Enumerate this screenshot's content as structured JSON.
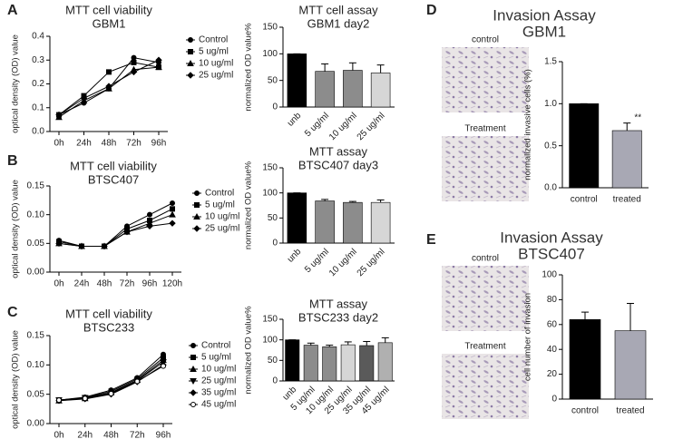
{
  "chart_data": [
    {
      "type": "line",
      "panel_label": "A",
      "title": "MTT cell viability",
      "subtitle": "GBM1",
      "y_label": "optical density (OD) value",
      "categories": [
        "0h",
        "24h",
        "48h",
        "72h",
        "96h"
      ],
      "series": [
        {
          "name": "Control",
          "color": "#000000",
          "marker": "circle",
          "values": [
            0.07,
            0.12,
            0.18,
            0.31,
            0.29
          ]
        },
        {
          "name": "5 ug/ml",
          "color": "#000000",
          "marker": "square",
          "values": [
            0.07,
            0.15,
            0.25,
            0.29,
            0.27
          ]
        },
        {
          "name": "10 ug/ml",
          "color": "#000000",
          "marker": "triangle",
          "values": [
            0.06,
            0.13,
            0.18,
            0.26,
            0.27
          ]
        },
        {
          "name": "25 ug/ml",
          "color": "#000000",
          "marker": "diamond",
          "values": [
            0.07,
            0.14,
            0.19,
            0.25,
            0.3
          ]
        }
      ],
      "ylim": [
        0,
        0.4
      ],
      "yticks": [
        {
          "value": 0,
          "label": "0.0"
        },
        0.1,
        0.2,
        0.3,
        0.4
      ]
    },
    {
      "type": "bar",
      "title": "MTT cell assay",
      "subtitle": "GBM1 day2",
      "y_label": "normalized OD value%",
      "categories": [
        "unb",
        "5 ug/ml",
        "10 ug/ml",
        "25 ug/ml"
      ],
      "values": [
        100,
        67,
        69,
        64
      ],
      "errors": [
        0,
        14,
        14,
        15
      ],
      "colors": [
        "#000000",
        "#8c8c8c",
        "#8c8c8c",
        "#d6d6d6"
      ],
      "ylim": [
        0,
        150
      ],
      "yticks": [
        0,
        50,
        100,
        150
      ]
    },
    {
      "type": "line",
      "panel_label": "B",
      "title": "MTT cell viability",
      "subtitle": "BTSC407",
      "y_label": "optical density (OD) value",
      "categories": [
        "0h",
        "24h",
        "48h",
        "72h",
        "96h",
        "120h"
      ],
      "series": [
        {
          "name": "Control",
          "color": "#000000",
          "marker": "circle",
          "values": [
            0.055,
            0.045,
            0.045,
            0.08,
            0.1,
            0.12
          ]
        },
        {
          "name": "5 ug/ml",
          "color": "#000000",
          "marker": "square",
          "values": [
            0.053,
            0.045,
            0.045,
            0.075,
            0.09,
            0.11
          ]
        },
        {
          "name": "10 ug/ml",
          "color": "#000000",
          "marker": "triangle",
          "values": [
            0.05,
            0.045,
            0.045,
            0.07,
            0.085,
            0.1
          ]
        },
        {
          "name": "25 ug/ml",
          "color": "#000000",
          "marker": "diamond",
          "values": [
            0.05,
            0.045,
            0.045,
            0.07,
            0.08,
            0.085
          ]
        }
      ],
      "ylim": [
        0,
        0.15
      ],
      "yticks": [
        {
          "value": 0,
          "label": "0.00"
        },
        0.05,
        {
          "value": 0.1,
          "label": "0.10"
        },
        0.15
      ]
    },
    {
      "type": "bar",
      "title": "MTT assay",
      "subtitle": "BTSC407 day3",
      "y_label": "normalized OD value%",
      "categories": [
        "unb",
        "5 ug/ml",
        "10 ug/ml",
        "25 ug/ml"
      ],
      "values": [
        100,
        84,
        81,
        81
      ],
      "errors": [
        0,
        3,
        2,
        5
      ],
      "colors": [
        "#000000",
        "#8c8c8c",
        "#8c8c8c",
        "#d6d6d6"
      ],
      "ylim": [
        0,
        150
      ],
      "yticks": [
        0,
        50,
        100,
        150
      ]
    },
    {
      "type": "line",
      "panel_label": "C",
      "title": "MTT cell viability",
      "subtitle": "BTSC233",
      "y_label": "optical density (OD) value",
      "categories": [
        "0h",
        "24h",
        "48h",
        "72h",
        "96h"
      ],
      "series": [
        {
          "name": "Control",
          "color": "#000000",
          "marker": "circle",
          "values": [
            0.04,
            0.045,
            0.057,
            0.078,
            0.118
          ]
        },
        {
          "name": "5 ug/ml",
          "color": "#000000",
          "marker": "square",
          "values": [
            0.04,
            0.044,
            0.055,
            0.076,
            0.112
          ]
        },
        {
          "name": "10 ug/ml",
          "color": "#000000",
          "marker": "triangle",
          "values": [
            0.039,
            0.043,
            0.053,
            0.074,
            0.108
          ]
        },
        {
          "name": "25 ug/ml",
          "color": "#000000",
          "marker": "invtriangle",
          "values": [
            0.04,
            0.044,
            0.052,
            0.073,
            0.105
          ]
        },
        {
          "name": "35 ug/ml",
          "color": "#000000",
          "marker": "diamond",
          "values": [
            0.039,
            0.042,
            0.05,
            0.071,
            0.1
          ]
        },
        {
          "name": "45 ug/ml",
          "color": "#000000",
          "marker": "hollow",
          "values": [
            0.04,
            0.043,
            0.051,
            0.072,
            0.098
          ]
        }
      ],
      "ylim": [
        0,
        0.15
      ],
      "yticks": [
        {
          "value": 0,
          "label": "0.00"
        },
        0.05,
        {
          "value": 0.1,
          "label": "0.10"
        },
        0.15
      ]
    },
    {
      "type": "bar",
      "title": "MTT assay",
      "subtitle": "BTSC233 day2",
      "y_label": "normalized OD value%",
      "categories": [
        "unb",
        "5 ug/ml",
        "10 ug/ml",
        "25 ug/ml",
        "35 ug/ml",
        "45 ug/ml"
      ],
      "values": [
        100,
        87,
        83,
        88,
        86,
        93
      ],
      "errors": [
        0,
        5,
        4,
        7,
        10,
        12
      ],
      "colors": [
        "#000000",
        "#8c8c8c",
        "#8c8c8c",
        "#d6d6d6",
        "#5a5a5a",
        "#b0b0b0"
      ],
      "ylim": [
        0,
        150
      ],
      "yticks": [
        0,
        50,
        100,
        150
      ]
    },
    {
      "type": "bar",
      "panel_label": "D",
      "title": "Invasion Assay",
      "subtitle": "GBM1",
      "images": [
        "control",
        "Treatment"
      ],
      "y_label": "normalized invasive cells (%)",
      "categories": [
        "control",
        "treated"
      ],
      "values": [
        1.0,
        0.68
      ],
      "errors": [
        0,
        0.09
      ],
      "annotation": "**",
      "colors": [
        "#000000",
        "#a8a8b4"
      ],
      "ylim": [
        0,
        1.5
      ],
      "yticks": [
        {
          "value": 0,
          "label": "0.0"
        },
        0.5,
        {
          "value": 1,
          "label": "1.0"
        },
        1.5
      ]
    },
    {
      "type": "bar",
      "panel_label": "E",
      "title": "Invasion Assay",
      "subtitle": "BTSC407",
      "images": [
        "control",
        "Treatment"
      ],
      "y_label": "cell number of invasion",
      "categories": [
        "control",
        "treated"
      ],
      "values": [
        64,
        55
      ],
      "errors": [
        6,
        22
      ],
      "colors": [
        "#000000",
        "#a8a8b4"
      ],
      "ylim": [
        0,
        100
      ],
      "yticks": [
        0,
        20,
        40,
        60,
        80,
        100
      ]
    }
  ]
}
